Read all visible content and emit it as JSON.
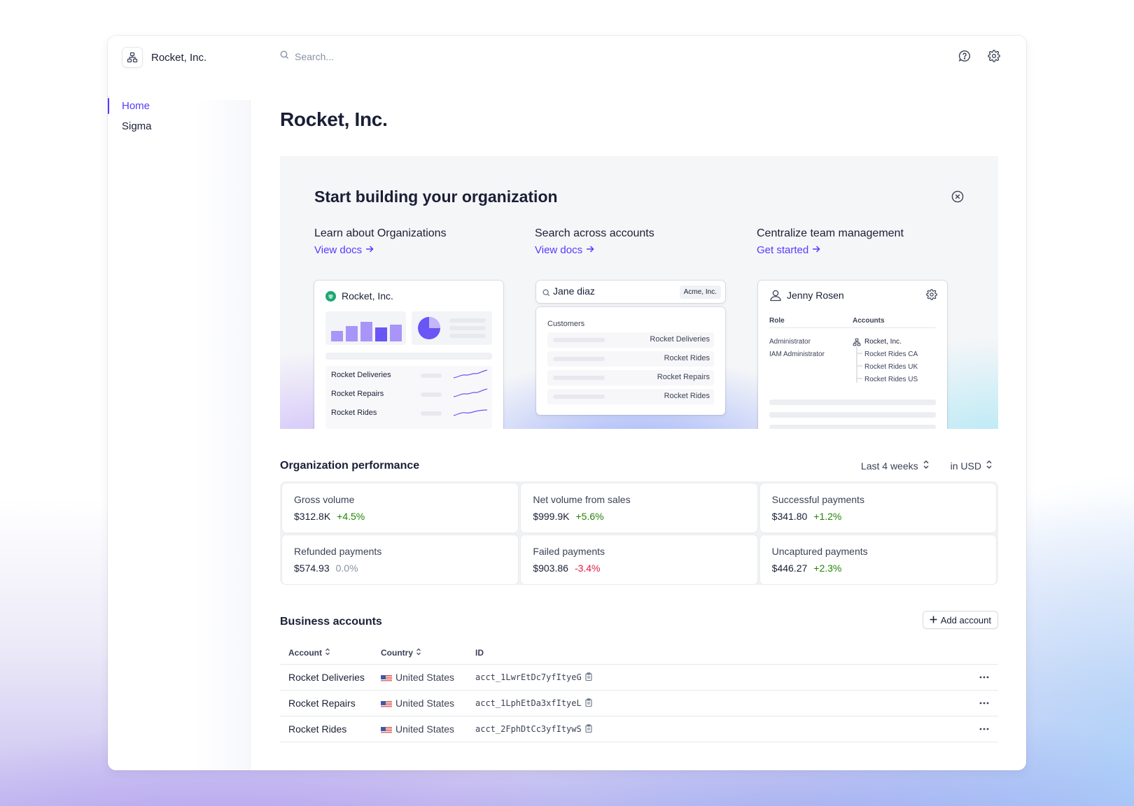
{
  "app": {
    "org_name": "Rocket, Inc.",
    "search_placeholder": "Search..."
  },
  "sidebar": {
    "items": [
      {
        "label": "Home",
        "active": true
      },
      {
        "label": "Sigma",
        "active": false
      }
    ]
  },
  "page": {
    "title": "Rocket, Inc."
  },
  "promo": {
    "title": "Start building your organization",
    "features": [
      {
        "title": "Learn about Organizations",
        "link": "View docs"
      },
      {
        "title": "Search across accounts",
        "link": "View docs"
      },
      {
        "title": "Centralize team management",
        "link": "Get started"
      }
    ],
    "card1": {
      "name": "Rocket, Inc.",
      "rows": [
        "Rocket Deliveries",
        "Rocket Repairs",
        "Rocket Rides"
      ]
    },
    "card2": {
      "query": "Jane diaz",
      "scope": "Acme, Inc.",
      "section": "Customers",
      "results": [
        "Rocket Deliveries",
        "Rocket Rides",
        "Rocket Repairs",
        "Rocket Rides"
      ]
    },
    "card3": {
      "user": "Jenny Rosen",
      "role_header": "Role",
      "accounts_header": "Accounts",
      "roles": [
        "Administrator",
        "IAM Administrator"
      ],
      "accounts": [
        "Rocket, Inc.",
        "Rocket Rides CA",
        "Rocket Rides UK",
        "Rocket Rides US"
      ]
    }
  },
  "performance": {
    "title": "Organization performance",
    "range": "Last 4 weeks",
    "currency": "in USD",
    "metrics": [
      {
        "label": "Gross volume",
        "value": "$312.8K",
        "change": "+4.5%",
        "trend": "pos"
      },
      {
        "label": "Net volume from sales",
        "value": "$999.9K",
        "change": "+5.6%",
        "trend": "pos"
      },
      {
        "label": "Successful payments",
        "value": "$341.80",
        "change": "+1.2%",
        "trend": "pos"
      },
      {
        "label": "Refunded payments",
        "value": "$574.93",
        "change": "0.0%",
        "trend": "neu"
      },
      {
        "label": "Failed payments",
        "value": "$903.86",
        "change": "-3.4%",
        "trend": "neg"
      },
      {
        "label": "Uncaptured payments",
        "value": "$446.27",
        "change": "+2.3%",
        "trend": "pos"
      }
    ]
  },
  "accounts": {
    "title": "Business accounts",
    "add_label": "Add account",
    "columns": {
      "account": "Account",
      "country": "Country",
      "id": "ID"
    },
    "rows": [
      {
        "account": "Rocket Deliveries",
        "country": "United States",
        "id": "acct_1LwrEtDc7yfItyeG"
      },
      {
        "account": "Rocket Repairs",
        "country": "United States",
        "id": "acct_1LphEtDa3xfItyeL"
      },
      {
        "account": "Rocket Rides",
        "country": "United States",
        "id": "acct_2FphDtCc3yfItywS"
      }
    ]
  },
  "colors": {
    "accent": "#533afd",
    "positive": "#228403",
    "negative": "#df1b41",
    "neutral": "#8792a2"
  }
}
